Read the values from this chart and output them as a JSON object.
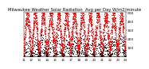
{
  "title": "Milwaukee Weather Solar Radiation  Avg per Day W/m2/minute",
  "title_fontsize": 3.8,
  "bg_color": "#ffffff",
  "plot_bg_color": "#ffffff",
  "grid_color": "#aaaaaa",
  "y_min": 0,
  "y_max": 500,
  "y_ticks": [
    100,
    200,
    300,
    400,
    500
  ],
  "y_tick_fontsize": 3.2,
  "x_tick_fontsize": 2.8,
  "dot_size_red": 0.6,
  "dot_size_black": 0.6,
  "red_color": "#ff0000",
  "black_color": "#000000",
  "num_years": 13,
  "days_per_year": 365
}
